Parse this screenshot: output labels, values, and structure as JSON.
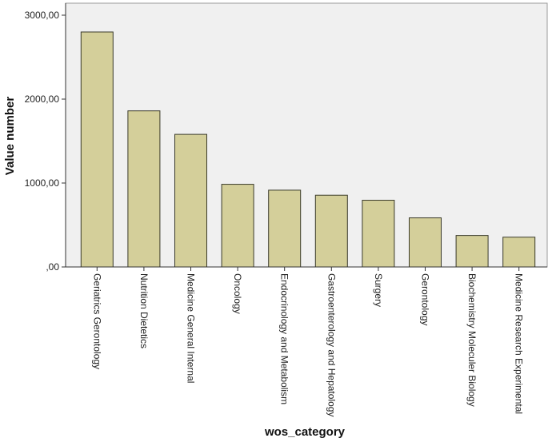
{
  "chart_data": {
    "type": "bar",
    "title": "",
    "xlabel": "wos_category",
    "ylabel": "Value number",
    "categories": [
      "Geriatrics Gerontology",
      "Nutrition Dietetics",
      "Medicine General Internal",
      "Oncology",
      "Endocrinology and Metabolism",
      "Gastroenterology and Hepatology",
      "Surgery",
      "Gerontology",
      "Biochemistry Moleculer Biology",
      "Medicine Research Experimental"
    ],
    "values": [
      2800,
      1860,
      1580,
      985,
      915,
      855,
      795,
      585,
      375,
      355
    ],
    "ylim": [
      0,
      3000
    ],
    "yticks": [
      {
        "value": 0,
        "label": ",00"
      },
      {
        "value": 1000,
        "label": "1000,00"
      },
      {
        "value": 2000,
        "label": "2000,00"
      },
      {
        "value": 3000,
        "label": "3000,00"
      }
    ],
    "grid": false,
    "legend": "none",
    "colors": {
      "bar_fill": "#d4cf9a",
      "bar_stroke": "#3a3a2a",
      "plot_background": "#f0f0f0",
      "axis": "#333333"
    }
  }
}
